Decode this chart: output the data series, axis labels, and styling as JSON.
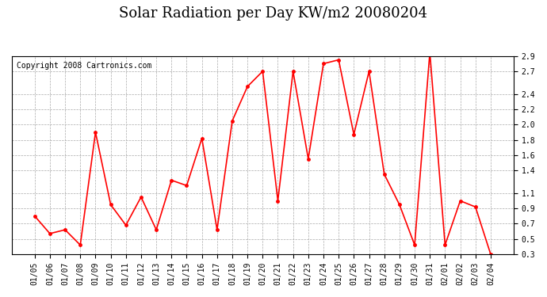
{
  "title": "Solar Radiation per Day KW/m2 20080204",
  "copyright": "Copyright 2008 Cartronics.com",
  "dates": [
    "01/05",
    "01/06",
    "01/07",
    "01/08",
    "01/09",
    "01/10",
    "01/11",
    "01/12",
    "01/13",
    "01/14",
    "01/15",
    "01/16",
    "01/17",
    "01/18",
    "01/19",
    "01/20",
    "01/21",
    "01/22",
    "01/23",
    "01/24",
    "01/25",
    "01/26",
    "01/27",
    "01/28",
    "01/29",
    "01/30",
    "01/31",
    "02/01",
    "02/02",
    "02/03",
    "02/04"
  ],
  "values": [
    0.8,
    0.57,
    0.62,
    0.42,
    1.9,
    0.95,
    0.68,
    1.05,
    0.62,
    1.27,
    1.2,
    1.82,
    0.62,
    2.05,
    2.5,
    2.7,
    1.0,
    2.7,
    1.55,
    2.8,
    2.85,
    1.87,
    2.7,
    1.35,
    0.95,
    0.42,
    2.95,
    0.42,
    1.0,
    0.92,
    0.3
  ],
  "line_color": "#ff0000",
  "marker": ".",
  "marker_size": 5,
  "ylim": [
    0.3,
    2.9
  ],
  "yticks": [
    0.3,
    0.5,
    0.7,
    0.9,
    1.1,
    1.4,
    1.6,
    1.8,
    2.0,
    2.2,
    2.4,
    2.7,
    2.9
  ],
  "grid_color": "#aaaaaa",
  "bg_color": "#ffffff",
  "title_fontsize": 13,
  "copyright_fontsize": 7
}
